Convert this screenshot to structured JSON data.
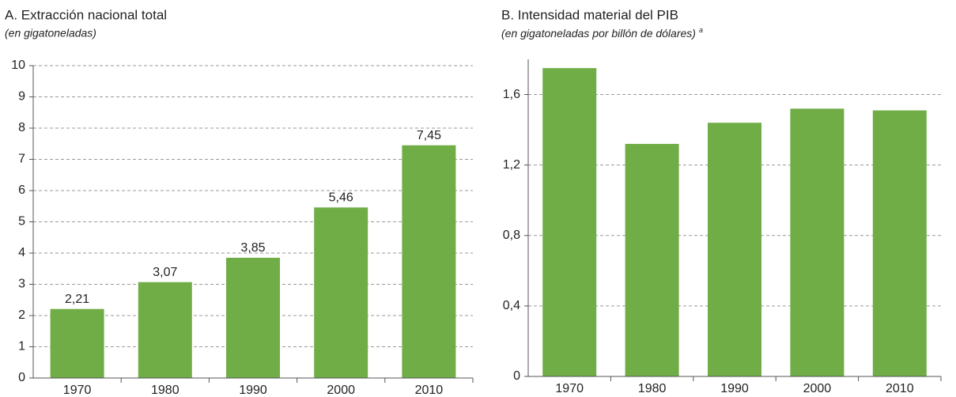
{
  "chart_data": [
    {
      "type": "bar",
      "title": "A. Extracción nacional total",
      "subtitle": "(en gigatoneladas)",
      "categories": [
        "1970",
        "1980",
        "1990",
        "2000",
        "2010"
      ],
      "values": [
        2.21,
        3.07,
        3.85,
        5.46,
        7.45
      ],
      "value_labels": [
        "2,21",
        "3,07",
        "3,85",
        "5,46",
        "7,45"
      ],
      "color": "#70ad47",
      "ylim": [
        0,
        10
      ],
      "yticks": [
        0,
        1,
        2,
        3,
        4,
        5,
        6,
        7,
        8,
        9,
        10
      ],
      "grid": true
    },
    {
      "type": "bar",
      "title": "B. Intensidad material del PIB",
      "subtitle": "(en gigatoneladas por billón de dólares)",
      "subtitle_note": "a",
      "categories": [
        "1970",
        "1980",
        "1990",
        "2000",
        "2010"
      ],
      "values": [
        1.75,
        1.32,
        1.44,
        1.52,
        1.51
      ],
      "color": "#70ad47",
      "ylim": [
        0,
        1.8
      ],
      "yticks": [
        0,
        {
          "value": 0.4,
          "label": "0,4"
        },
        {
          "value": 0.8,
          "label": "0,8"
        },
        {
          "value": 1.2,
          "label": "1,2"
        },
        {
          "value": 1.6,
          "label": "1,6"
        }
      ],
      "grid": true
    }
  ]
}
